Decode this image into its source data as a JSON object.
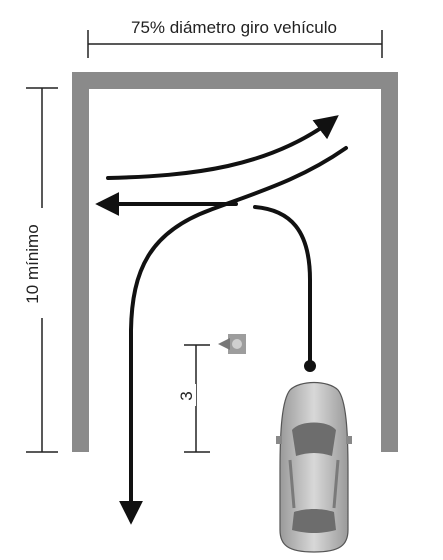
{
  "labels": {
    "width_dimension": "75% diámetro giro vehículo",
    "height_dimension": "10 mínimo",
    "cone_distance": "3"
  },
  "colors": {
    "ink": "#111111",
    "wall": "#8a8a8a",
    "dimension_line": "#222222",
    "car_body": "#b9b9b9",
    "car_glass": "#6d6d6d"
  },
  "icons": {
    "cone": "traffic-cone-icon",
    "car": "car-top-view-icon"
  }
}
